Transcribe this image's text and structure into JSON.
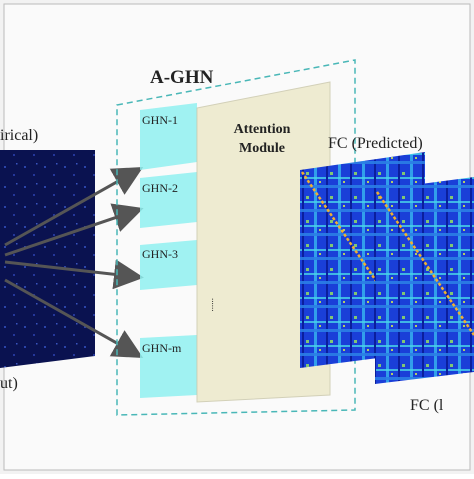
{
  "input": {
    "top_label": "irical)",
    "bottom_label": "ut)"
  },
  "aghn": {
    "title": "A-GHN",
    "modules": [
      "GHN-1",
      "GHN-2",
      "GHN-3",
      "GHN-m"
    ],
    "ellipsis": "......"
  },
  "attention": {
    "lines": [
      "Attention",
      "Module"
    ]
  },
  "outputs": {
    "predicted_label": "FC (Predicted)",
    "empirical_label": "FC (l"
  }
}
